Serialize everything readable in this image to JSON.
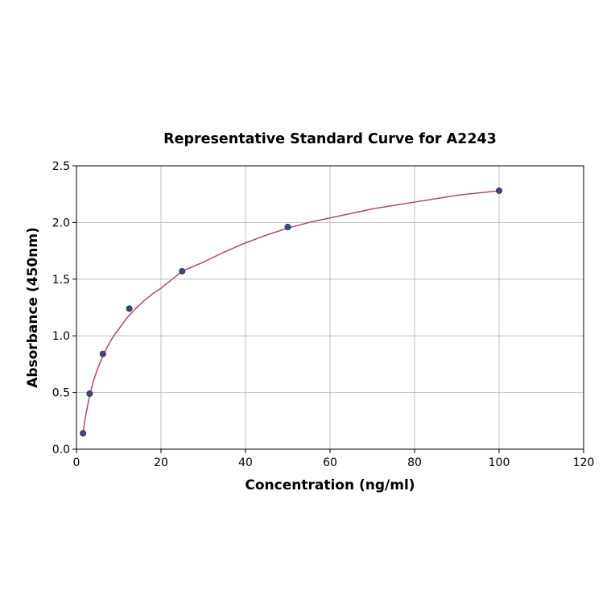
{
  "chart_data": {
    "type": "scatter",
    "title": "Representative Standard Curve for A2243",
    "xlabel": "Concentration (ng/ml)",
    "ylabel": "Absorbance (450nm)",
    "xlim": [
      0,
      120
    ],
    "ylim": [
      0,
      2.5
    ],
    "xticks": [
      0,
      20,
      40,
      60,
      80,
      100,
      120
    ],
    "yticks": [
      0.0,
      0.5,
      1.0,
      1.5,
      2.0,
      2.5
    ],
    "xtick_labels": [
      "0",
      "20",
      "40",
      "60",
      "80",
      "100",
      "120"
    ],
    "ytick_labels": [
      "0.0",
      "0.5",
      "1.0",
      "1.5",
      "2.0",
      "2.5"
    ],
    "grid": true,
    "series": [
      {
        "points": [
          {
            "x": 1.56,
            "y": 0.14
          },
          {
            "x": 3.12,
            "y": 0.49
          },
          {
            "x": 6.25,
            "y": 0.84
          },
          {
            "x": 12.5,
            "y": 1.24
          },
          {
            "x": 25,
            "y": 1.57
          },
          {
            "x": 50,
            "y": 1.96
          },
          {
            "x": 100,
            "y": 2.28
          }
        ],
        "fit_curve": {
          "x": [
            1.56,
            2,
            2.5,
            3,
            3.5,
            4,
            5,
            6,
            7,
            8,
            9,
            10,
            12,
            14,
            16,
            18,
            20,
            25,
            30,
            35,
            40,
            45,
            50,
            55,
            60,
            65,
            70,
            75,
            80,
            85,
            90,
            95,
            100
          ],
          "y": [
            0.14,
            0.26,
            0.36,
            0.45,
            0.53,
            0.6,
            0.71,
            0.8,
            0.88,
            0.95,
            1.01,
            1.06,
            1.16,
            1.24,
            1.31,
            1.37,
            1.42,
            1.57,
            1.65,
            1.74,
            1.82,
            1.89,
            1.95,
            2.0,
            2.04,
            2.08,
            2.12,
            2.15,
            2.18,
            2.21,
            2.24,
            2.26,
            2.28
          ]
        }
      }
    ],
    "colors": {
      "marker_fill": "#3b4a7d",
      "marker_edge": "#2b2f45",
      "curve": "#b5466a",
      "grid": "#b0b0b0",
      "axes": "#000000"
    }
  }
}
